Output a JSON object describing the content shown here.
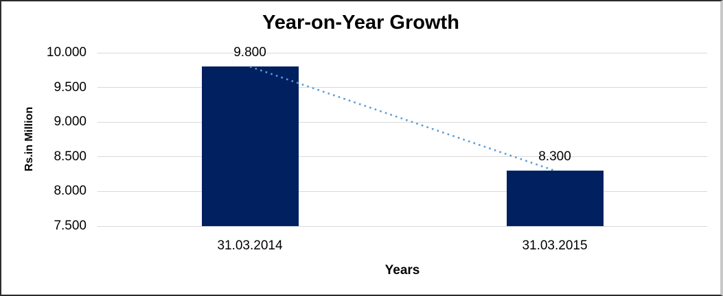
{
  "frame": {
    "background": "#ffffff",
    "border_dark": "#2b2b2b",
    "border_light": "#c8c8c8"
  },
  "chart_data": {
    "type": "bar",
    "title": "Year-on-Year Growth",
    "xlabel": "Years",
    "ylabel": "Rs.in Million",
    "categories": [
      "31.03.2014",
      "31.03.2015"
    ],
    "values": [
      9800,
      8300
    ],
    "value_labels": [
      "9.800",
      "8.300"
    ],
    "ylim": [
      7500,
      10000
    ],
    "ytick_step": 500,
    "ytick_labels": [
      "10.000",
      "9.500",
      "9.000",
      "8.500",
      "8.000",
      "7.500"
    ],
    "grid": true,
    "legend": "none",
    "colors": {
      "bar": "#002060",
      "gridline": "#d9d9d9",
      "trendline": "#5b9bd5",
      "text": "#000000"
    },
    "trendline": {
      "type": "linear",
      "style": "dotted",
      "from_value": 9800,
      "to_value": 8300
    }
  }
}
